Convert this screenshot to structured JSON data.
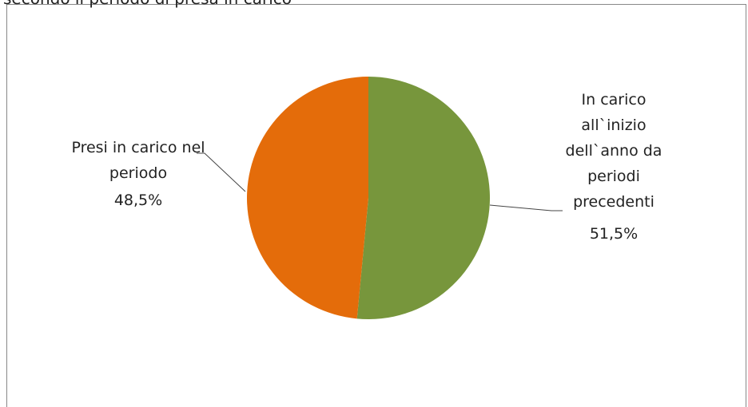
{
  "chart_data": {
    "type": "pie",
    "title": "secondo il periodo di presa in carico",
    "categories": [
      "In carico all`inizio dell`anno da periodi precedenti",
      "Presi in carico nel periodo"
    ],
    "values": [
      51.5,
      48.5
    ],
    "value_labels": [
      "51,5%",
      "48,5%"
    ],
    "colors": [
      "#77963c",
      "#e46c0a"
    ]
  }
}
